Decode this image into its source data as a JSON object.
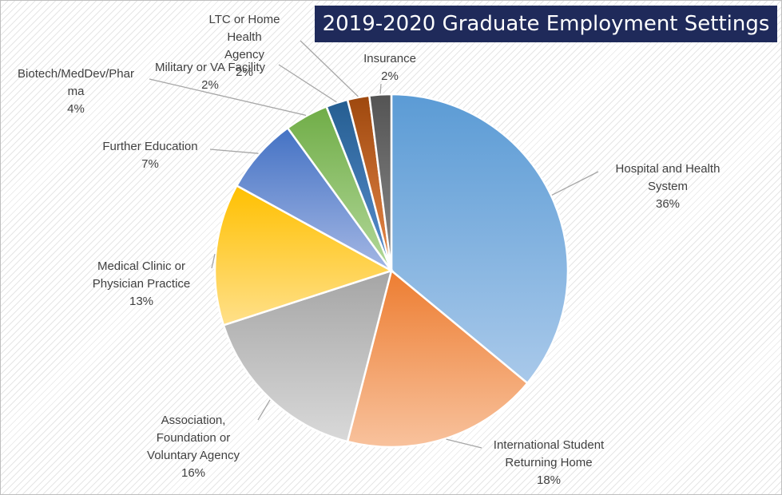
{
  "chart_data": {
    "type": "pie",
    "title": "2019-2020 Graduate Employment Settings",
    "slices": [
      {
        "label_lines": [
          "Hospital and Health",
          "System"
        ],
        "value": 36,
        "value_label": "36%",
        "color_light": "#a9c9ea",
        "color_dark": "#5b9bd5"
      },
      {
        "label_lines": [
          "International Student",
          "Returning Home"
        ],
        "value": 18,
        "value_label": "18%",
        "color_light": "#f8c29d",
        "color_dark": "#ed7d31"
      },
      {
        "label_lines": [
          "Association,",
          "Foundation or",
          "Voluntary Agency"
        ],
        "value": 16,
        "value_label": "16%",
        "color_light": "#d9d9d9",
        "color_dark": "#a5a5a5"
      },
      {
        "label_lines": [
          "Medical Clinic or",
          "Physician Practice"
        ],
        "value": 13,
        "value_label": "13%",
        "color_light": "#ffe08a",
        "color_dark": "#ffc000"
      },
      {
        "label_lines": [
          "Further Education"
        ],
        "value": 7,
        "value_label": "7%",
        "color_light": "#a4b7e4",
        "color_dark": "#4472c4"
      },
      {
        "label_lines": [
          "Biotech/MedDev/Phar",
          "ma"
        ],
        "value": 4,
        "value_label": "4%",
        "color_light": "#b3d89a",
        "color_dark": "#70ad47"
      },
      {
        "label_lines": [
          "Military or VA Facility"
        ],
        "value": 2,
        "value_label": "2%",
        "color_light": "#5a8fd0",
        "color_dark": "#255e91"
      },
      {
        "label_lines": [
          "LTC or Home",
          "Health",
          "Agency"
        ],
        "value": 2,
        "value_label": "2%",
        "color_light": "#e8894a",
        "color_dark": "#9e480e"
      },
      {
        "label_lines": [
          "Insurance"
        ],
        "value": 2,
        "value_label": "2%",
        "color_light": "#8a8a8a",
        "color_dark": "#545454"
      }
    ],
    "legend": "none",
    "data_labels": "outside with leader lines"
  }
}
